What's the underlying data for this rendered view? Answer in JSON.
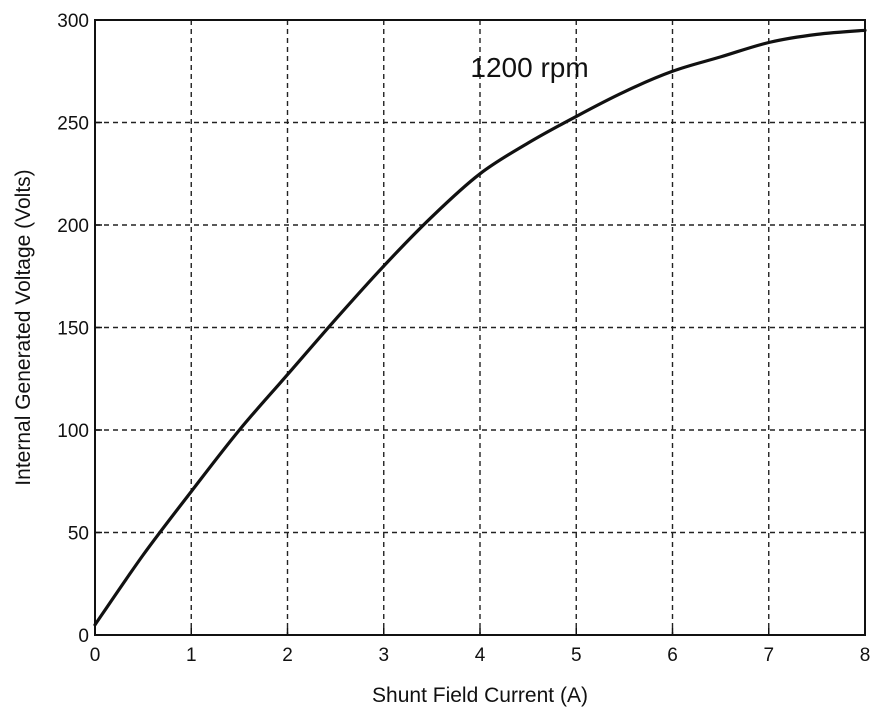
{
  "chart_data": {
    "type": "line",
    "title": "",
    "xlabel": "Shunt Field Current (A)",
    "ylabel": "Internal Generated Voltage (Volts)",
    "xlim": [
      0,
      8
    ],
    "ylim": [
      0,
      300
    ],
    "xticks": [
      0,
      1,
      2,
      3,
      4,
      5,
      6,
      7,
      8
    ],
    "yticks": [
      0,
      50,
      100,
      150,
      200,
      250,
      300
    ],
    "grid": true,
    "grid_style": "dashed",
    "line_color": "#111111",
    "annotation": {
      "text": "1200 rpm",
      "x": 3.9,
      "y": 277
    },
    "series": [
      {
        "x": [
          0,
          0.5,
          1,
          1.5,
          2,
          2.5,
          3,
          3.5,
          4,
          4.5,
          5,
          5.5,
          6,
          6.5,
          7,
          7.5,
          8
        ],
        "y": [
          5,
          39,
          70,
          100,
          127,
          154,
          180,
          204,
          225,
          240,
          253,
          265,
          275,
          282,
          289,
          293,
          295
        ]
      }
    ]
  }
}
